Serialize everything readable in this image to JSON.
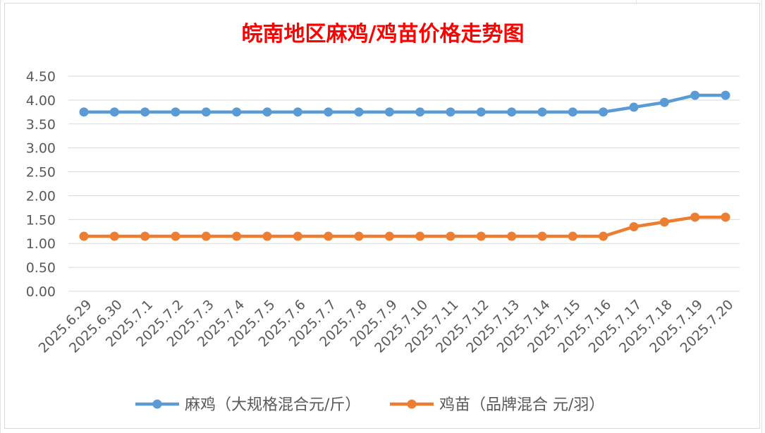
{
  "chart_data": {
    "type": "line",
    "title": "皖南地区麻鸡/鸡苗价格走势图",
    "xlabel": "",
    "ylabel": "",
    "ylim": [
      0,
      4.5
    ],
    "yticks": [
      "0.00",
      "0.50",
      "1.00",
      "1.50",
      "2.00",
      "2.50",
      "3.00",
      "3.50",
      "4.00",
      "4.50"
    ],
    "categories": [
      "2025.6.29",
      "2025.6.30",
      "2025.7.1",
      "2025.7.2",
      "2025.7.3",
      "2025.7.4",
      "2025.7.5",
      "2025.7.6",
      "2025.7.7",
      "2025.7.8",
      "2025.7.9",
      "2025.7.10",
      "2025.7.11",
      "2025.7.12",
      "2025.7.13",
      "2025.7.14",
      "2025.7.15",
      "2025.7.16",
      "2025.7.17",
      "2025.7.18",
      "2025.7.19",
      "2025.7.20"
    ],
    "series": [
      {
        "name": "麻鸡（大规格混合元/斤）",
        "color": "#5b9bd5",
        "values": [
          3.75,
          3.75,
          3.75,
          3.75,
          3.75,
          3.75,
          3.75,
          3.75,
          3.75,
          3.75,
          3.75,
          3.75,
          3.75,
          3.75,
          3.75,
          3.75,
          3.75,
          3.75,
          3.85,
          3.95,
          4.1,
          4.1
        ]
      },
      {
        "name": "鸡苗（品牌混合 元/羽）",
        "color": "#ed7d31",
        "values": [
          1.15,
          1.15,
          1.15,
          1.15,
          1.15,
          1.15,
          1.15,
          1.15,
          1.15,
          1.15,
          1.15,
          1.15,
          1.15,
          1.15,
          1.15,
          1.15,
          1.15,
          1.15,
          1.35,
          1.45,
          1.55,
          1.55
        ]
      }
    ],
    "grid": true,
    "legend": "bottom",
    "title_color": "#ff0000",
    "axis_text_color": "#595959",
    "grid_color": "#d9d9d9"
  }
}
